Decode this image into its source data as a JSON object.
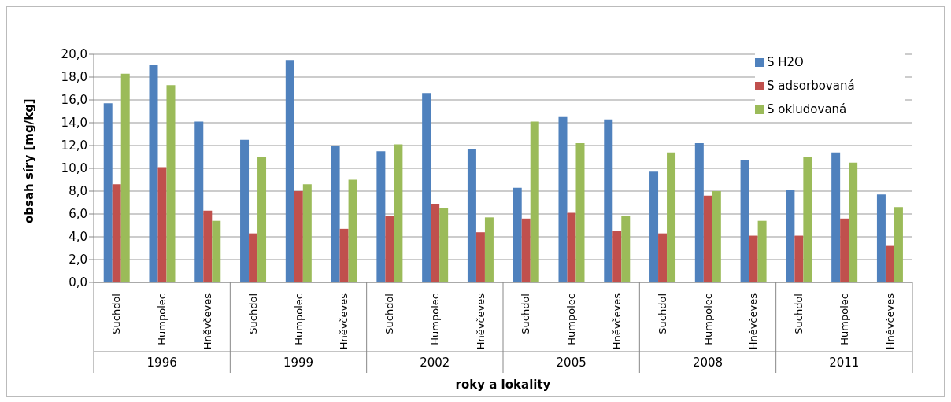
{
  "chart_data": {
    "type": "bar",
    "ylabel": "obsah síry [mg/kg]",
    "xlabel": "roky a lokality",
    "categories": [
      "Suchdol",
      "Humpolec",
      "Hněvčeves",
      "Suchdol",
      "Humpolec",
      "Hněvčeves",
      "Suchdol",
      "Humpolec",
      "Hněvčeves",
      "Suchdol",
      "Humpolec",
      "Hněvčeves",
      "Suchdol",
      "Humpolec",
      "Hněvčeves",
      "Suchdol",
      "Humpolec",
      "Hněvčeves"
    ],
    "annotations": [
      "1996",
      "1999",
      "2002",
      "2005",
      "2008",
      "2011"
    ],
    "series": [
      {
        "name": "S H2O",
        "color": "#4f81bd",
        "values": [
          15.7,
          19.1,
          14.1,
          12.5,
          19.5,
          12.0,
          11.5,
          16.6,
          11.7,
          8.3,
          14.5,
          14.3,
          9.7,
          12.2,
          10.7,
          8.1,
          11.4,
          7.7
        ]
      },
      {
        "name": "S adsorbovaná",
        "color": "#c0504d",
        "values": [
          8.6,
          10.1,
          6.3,
          4.3,
          8.0,
          4.7,
          5.8,
          6.9,
          4.4,
          5.6,
          6.1,
          4.5,
          4.3,
          7.6,
          4.1,
          4.1,
          5.6,
          3.2
        ]
      },
      {
        "name": "S okludovaná",
        "color": "#9bbb59",
        "values": [
          18.3,
          17.3,
          5.4,
          11.0,
          8.6,
          9.0,
          12.1,
          6.5,
          5.7,
          14.1,
          12.2,
          5.8,
          11.4,
          8.0,
          5.4,
          11.0,
          10.5,
          6.6
        ]
      }
    ],
    "ylim": [
      0,
      20
    ],
    "yticks": [
      {
        "value": 0,
        "label": "0,0"
      },
      {
        "value": 2,
        "label": "2,0"
      },
      {
        "value": 4,
        "label": "4,0"
      },
      {
        "value": 6,
        "label": "6,0"
      },
      {
        "value": 8,
        "label": "8,0"
      },
      {
        "value": 10,
        "label": "10,0"
      },
      {
        "value": 12,
        "label": "12,0"
      },
      {
        "value": 14,
        "label": "14,0"
      },
      {
        "value": 16,
        "label": "16,0"
      },
      {
        "value": 18,
        "label": "18,0"
      },
      {
        "value": 20,
        "label": "20,0"
      }
    ],
    "grid": "y",
    "legend": "top right"
  }
}
